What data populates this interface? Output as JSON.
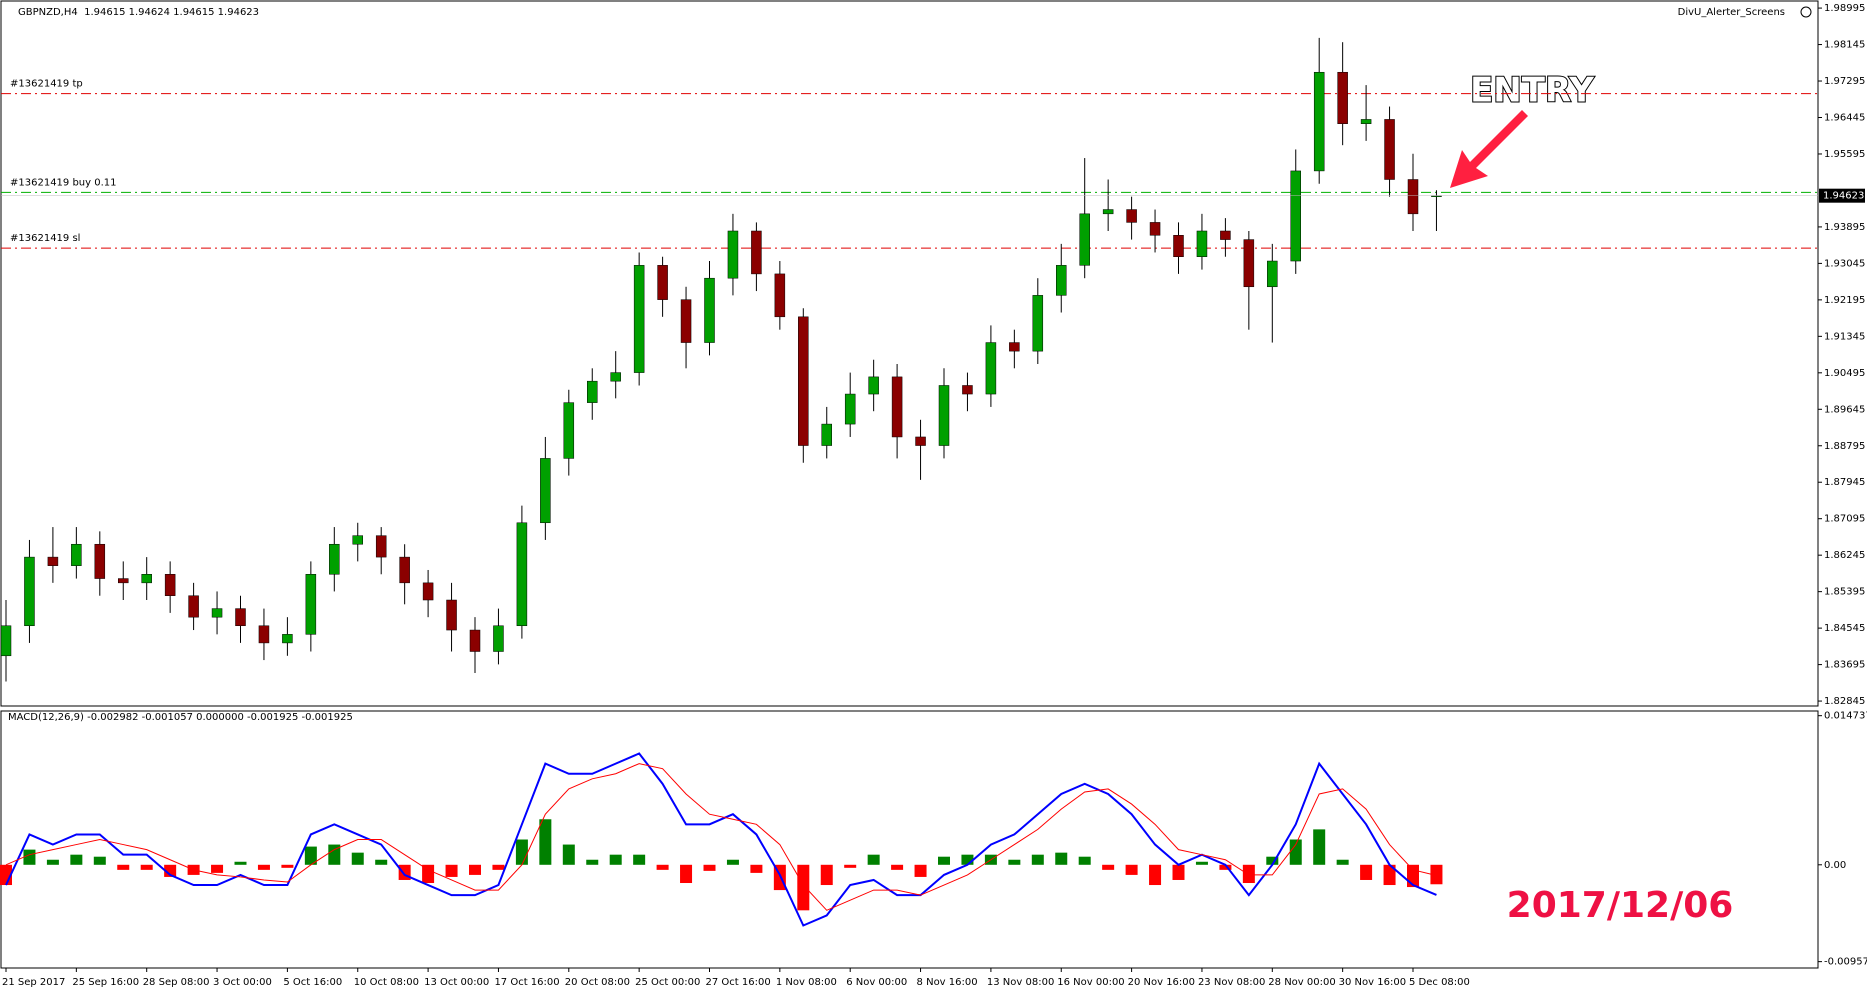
{
  "chart_data": {
    "type": "candlestick",
    "header": "GBPNZD,H4  1.94615 1.94624 1.94615 1.94623",
    "indicator_name": "DivU_Alerter_Screens",
    "categories": [
      "21 Sep 2017",
      null,
      null,
      "25 Sep 16:00",
      null,
      null,
      "28 Sep 08:00",
      null,
      null,
      "3 Oct 00:00",
      null,
      null,
      "5 Oct 16:00",
      null,
      null,
      "10 Oct 08:00",
      null,
      null,
      "13 Oct 00:00",
      null,
      null,
      "17 Oct 16:00",
      null,
      null,
      "20 Oct 08:00",
      null,
      null,
      "25 Oct 00:00",
      null,
      null,
      "27 Oct 16:00",
      null,
      null,
      "1 Nov 08:00",
      null,
      null,
      "6 Nov 00:00",
      null,
      null,
      "8 Nov 16:00",
      null,
      null,
      "13 Nov 08:00",
      null,
      null,
      "16 Nov 00:00",
      null,
      null,
      "20 Nov 16:00",
      null,
      null,
      "23 Nov 08:00",
      null,
      null,
      "28 Nov 00:00",
      null,
      null,
      "30 Nov 16:00",
      null,
      null,
      "5 Dec 08:00",
      null
    ],
    "open": [
      1.839,
      1.846,
      1.862,
      1.86,
      1.865,
      1.857,
      1.856,
      1.858,
      1.853,
      1.848,
      1.85,
      1.846,
      1.842,
      1.844,
      1.858,
      1.865,
      1.867,
      1.862,
      1.856,
      1.852,
      1.845,
      1.84,
      1.846,
      1.87,
      1.885,
      1.898,
      1.903,
      1.905,
      1.93,
      1.922,
      1.912,
      1.927,
      1.938,
      1.928,
      1.918,
      1.888,
      1.893,
      1.9,
      1.904,
      1.89,
      1.888,
      1.902,
      1.9,
      1.912,
      1.91,
      1.923,
      1.93,
      1.942,
      1.943,
      1.94,
      1.937,
      1.932,
      1.938,
      1.936,
      1.925,
      1.931,
      1.952,
      1.975,
      1.963,
      1.964,
      1.95,
      1.94615
    ],
    "high": [
      1.852,
      1.866,
      1.869,
      1.869,
      1.868,
      1.861,
      1.862,
      1.861,
      1.856,
      1.854,
      1.853,
      1.85,
      1.848,
      1.861,
      1.869,
      1.87,
      1.869,
      1.865,
      1.859,
      1.856,
      1.848,
      1.85,
      1.874,
      1.89,
      1.901,
      1.906,
      1.91,
      1.933,
      1.932,
      1.925,
      1.931,
      1.942,
      1.94,
      1.931,
      1.92,
      1.897,
      1.905,
      1.908,
      1.907,
      1.894,
      1.906,
      1.905,
      1.916,
      1.915,
      1.927,
      1.935,
      1.955,
      1.95,
      1.946,
      1.943,
      1.94,
      1.942,
      1.941,
      1.938,
      1.935,
      1.957,
      1.983,
      1.982,
      1.972,
      1.967,
      1.956,
      1.9475
    ],
    "low": [
      1.833,
      1.842,
      1.856,
      1.857,
      1.853,
      1.852,
      1.852,
      1.849,
      1.845,
      1.844,
      1.842,
      1.838,
      1.839,
      1.84,
      1.854,
      1.861,
      1.858,
      1.851,
      1.848,
      1.84,
      1.835,
      1.837,
      1.843,
      1.866,
      1.881,
      1.894,
      1.899,
      1.902,
      1.918,
      1.906,
      1.909,
      1.923,
      1.924,
      1.915,
      1.884,
      1.885,
      1.89,
      1.896,
      1.885,
      1.88,
      1.885,
      1.896,
      1.897,
      1.906,
      1.907,
      1.919,
      1.927,
      1.938,
      1.936,
      1.933,
      1.928,
      1.929,
      1.932,
      1.915,
      1.912,
      1.928,
      1.949,
      1.958,
      1.959,
      1.946,
      1.938,
      1.938
    ],
    "close": [
      1.846,
      1.862,
      1.86,
      1.865,
      1.857,
      1.856,
      1.858,
      1.853,
      1.848,
      1.85,
      1.846,
      1.842,
      1.844,
      1.858,
      1.865,
      1.867,
      1.862,
      1.856,
      1.852,
      1.845,
      1.84,
      1.846,
      1.87,
      1.885,
      1.898,
      1.903,
      1.905,
      1.93,
      1.922,
      1.912,
      1.927,
      1.938,
      1.928,
      1.918,
      1.888,
      1.893,
      1.9,
      1.904,
      1.89,
      1.888,
      1.902,
      1.9,
      1.912,
      1.91,
      1.923,
      1.93,
      1.942,
      1.943,
      1.94,
      1.937,
      1.932,
      1.938,
      1.936,
      1.925,
      1.931,
      1.952,
      1.975,
      1.963,
      1.964,
      1.95,
      1.942,
      1.94623
    ],
    "up_color": "#00a000",
    "down_color": "#8b0000",
    "ylim": [
      1.8273,
      1.9916
    ],
    "yticks": [
      1.98995,
      1.98145,
      1.97295,
      1.96445,
      1.95595,
      1.93895,
      1.93045,
      1.92195,
      1.91345,
      1.90495,
      1.89645,
      1.88795,
      1.87945,
      1.87095,
      1.86245,
      1.85395,
      1.84545,
      1.83695,
      1.82845
    ],
    "current_price": 1.94623,
    "order_lines": [
      {
        "label": "#13621419 tp",
        "value": 1.97,
        "color": "#e00000"
      },
      {
        "label": "#13621419 buy 0.11",
        "value": 1.947,
        "color": "#00b000"
      },
      {
        "label": "#13621419 sl",
        "value": 1.934,
        "color": "#e00000"
      }
    ],
    "annotations": [
      "ENTRY",
      "2017/12/06"
    ],
    "macd": {
      "title": "MACD(12,26,9) -0.002982 -0.001057 0.000000 -0.001925 -0.001925",
      "ylim": [
        -0.0102,
        0.0152
      ],
      "yticks": [
        0.014737,
        {
          "value": 0,
          "label": "0.00"
        },
        -0.009571
      ],
      "hist_up_color": "#008000",
      "hist_down_color": "#ff0000",
      "histogram": [
        -0.002,
        0.0015,
        0.0005,
        0.001,
        0.0008,
        -0.0005,
        -0.0005,
        -0.0012,
        -0.001,
        -0.0008,
        0.0003,
        -0.0005,
        -0.0003,
        0.0018,
        0.002,
        0.0012,
        0.0005,
        -0.0015,
        -0.0018,
        -0.0012,
        -0.001,
        -0.0005,
        0.0025,
        0.0045,
        0.002,
        0.0005,
        0.001,
        0.001,
        -0.0005,
        -0.0018,
        -0.0006,
        0.0005,
        -0.0008,
        -0.0025,
        -0.0045,
        -0.002,
        -0.0003,
        0.001,
        -0.0005,
        -0.0012,
        0.0008,
        0.001,
        0.001,
        0.0005,
        0.001,
        0.0012,
        0.0008,
        -0.0005,
        -0.001,
        -0.002,
        -0.0015,
        0.0003,
        -0.0005,
        -0.0018,
        0.0008,
        0.0025,
        0.0035,
        0.0005,
        -0.0015,
        -0.002,
        -0.0022,
        -0.001925
      ],
      "series": [
        {
          "color": "#0000ff",
          "values": [
            -0.002,
            0.003,
            0.002,
            0.003,
            0.003,
            0.001,
            0.001,
            -0.001,
            -0.002,
            -0.002,
            -0.001,
            -0.002,
            -0.002,
            0.003,
            0.004,
            0.003,
            0.002,
            -0.001,
            -0.002,
            -0.003,
            -0.003,
            -0.002,
            0.004,
            0.01,
            0.009,
            0.009,
            0.01,
            0.011,
            0.008,
            0.004,
            0.004,
            0.005,
            0.003,
            -0.001,
            -0.006,
            -0.005,
            -0.002,
            -0.0015,
            -0.003,
            -0.003,
            -0.001,
            0.0,
            0.002,
            0.003,
            0.005,
            0.007,
            0.008,
            0.007,
            0.005,
            0.002,
            0.0,
            0.001,
            0.0,
            -0.003,
            0.0,
            0.004,
            0.01,
            0.007,
            0.004,
            0.0,
            -0.002,
            -0.002982
          ]
        },
        {
          "color": "#ff0000",
          "values": [
            0.0,
            0.001,
            0.0015,
            0.002,
            0.0025,
            0.002,
            0.0015,
            0.0005,
            -0.0005,
            -0.001,
            -0.0012,
            -0.0015,
            -0.0017,
            0.0,
            0.0015,
            0.0025,
            0.0025,
            0.001,
            -0.0005,
            -0.0015,
            -0.0025,
            -0.0025,
            0.0,
            0.005,
            0.0075,
            0.0085,
            0.009,
            0.01,
            0.0095,
            0.007,
            0.005,
            0.0045,
            0.004,
            0.002,
            -0.002,
            -0.0045,
            -0.0035,
            -0.0025,
            -0.0025,
            -0.003,
            -0.002,
            -0.001,
            0.0005,
            0.002,
            0.0035,
            0.0055,
            0.0072,
            0.0075,
            0.006,
            0.004,
            0.0015,
            0.001,
            0.0005,
            -0.001,
            -0.001,
            0.002,
            0.007,
            0.0075,
            0.0055,
            0.002,
            -0.0005,
            -0.001057
          ]
        }
      ]
    }
  }
}
